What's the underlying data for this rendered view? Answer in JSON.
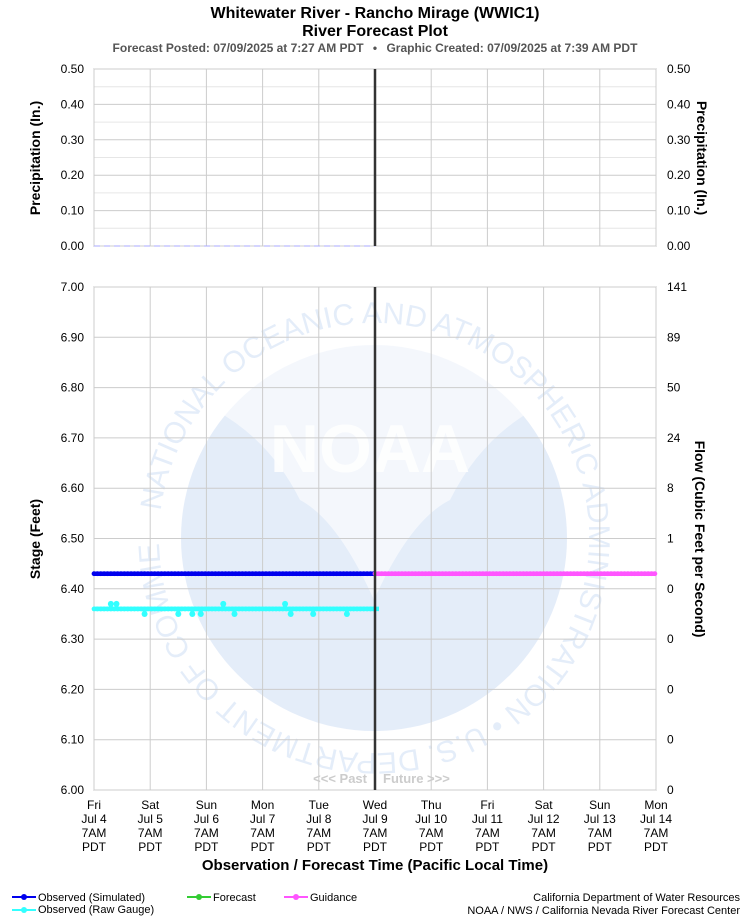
{
  "header": {
    "title": "Whitewater River - Rancho Mirage (WWIC1)",
    "subtitle": "River Forecast Plot",
    "posted": "Forecast Posted: 07/09/2025 at 7:27 AM PDT",
    "separator": "•",
    "created": "Graphic Created: 07/09/2025 at 7:39 AM PDT"
  },
  "chart_data": [
    {
      "type": "line",
      "panel": "precipitation",
      "ylabel": "Precipitation (In.)",
      "ylabel_right": "Precipitation (In.)",
      "ylim": [
        0,
        0.5
      ],
      "yticks": [
        "0.50",
        "0.40",
        "0.30",
        "0.20",
        "0.10",
        "0.00"
      ],
      "series": [
        {
          "name": "",
          "color": "#aaaaff",
          "style": "dashed",
          "x": [
            0,
            5
          ],
          "y": [
            0.0,
            0.0
          ]
        }
      ]
    },
    {
      "type": "line",
      "panel": "stage",
      "ylabel": "Stage (Feet)",
      "ylabel_right": "Flow (Cubic Feet per Second)",
      "ylim": [
        6.0,
        7.0
      ],
      "yticks": [
        "7.00",
        "6.90",
        "6.80",
        "6.70",
        "6.60",
        "6.50",
        "6.40",
        "6.30",
        "6.20",
        "6.10",
        "6.00"
      ],
      "yticks_right": [
        "141",
        "89",
        "50",
        "24",
        "8",
        "1",
        "0",
        "0",
        "0",
        "0",
        "0"
      ],
      "xlabel": "Observation / Forecast Time (Pacific Local Time)",
      "x_days_from_jul4": [
        0,
        1,
        2,
        3,
        4,
        5,
        6,
        7,
        8,
        9,
        10
      ],
      "x_ticks": [
        [
          "Fri",
          "Jul 4",
          "7AM",
          "PDT"
        ],
        [
          "Sat",
          "Jul 5",
          "7AM",
          "PDT"
        ],
        [
          "Sun",
          "Jul 6",
          "7AM",
          "PDT"
        ],
        [
          "Mon",
          "Jul 7",
          "7AM",
          "PDT"
        ],
        [
          "Tue",
          "Jul 8",
          "7AM",
          "PDT"
        ],
        [
          "Wed",
          "Jul 9",
          "7AM",
          "PDT"
        ],
        [
          "Thu",
          "Jul 10",
          "7AM",
          "PDT"
        ],
        [
          "Fri",
          "Jul 11",
          "7AM",
          "PDT"
        ],
        [
          "Sat",
          "Jul 12",
          "7AM",
          "PDT"
        ],
        [
          "Sun",
          "Jul 13",
          "7AM",
          "PDT"
        ],
        [
          "Mon",
          "Jul 14",
          "7AM",
          "PDT"
        ]
      ],
      "now_day": 5,
      "past_label": "<<< Past",
      "future_label": "Future >>>",
      "series": [
        {
          "name": "Observed (Simulated)",
          "color": "#0000ee",
          "x_start": 0,
          "x_end": 5.0,
          "value": 6.43
        },
        {
          "name": "Guidance",
          "color": "#ff55ff",
          "x_start": 5.0,
          "x_end": 10.0,
          "value": 6.43
        },
        {
          "name": "Observed (Raw Gauge)",
          "color": "#33ffff",
          "x_start": 0,
          "x_end": 5.0,
          "value": 6.36,
          "points": [
            [
              0.3,
              6.37
            ],
            [
              0.4,
              6.37
            ],
            [
              0.9,
              6.35
            ],
            [
              1.5,
              6.35
            ],
            [
              1.75,
              6.35
            ],
            [
              1.9,
              6.35
            ],
            [
              2.3,
              6.37
            ],
            [
              2.5,
              6.35
            ],
            [
              3.4,
              6.37
            ],
            [
              3.5,
              6.35
            ],
            [
              3.9,
              6.35
            ],
            [
              4.5,
              6.35
            ]
          ]
        }
      ]
    }
  ],
  "legend": {
    "observed_simulated": "Observed (Simulated)",
    "observed_raw": "Observed (Raw Gauge)",
    "forecast": "Forecast",
    "guidance": "Guidance",
    "color_simulated": "#0000ee",
    "color_raw": "#33ffff",
    "color_forecast": "#33cc33",
    "color_guidance": "#ff55ff"
  },
  "credits": {
    "line1": "California Department of Water Resources",
    "line2": "NOAA / NWS / California Nevada River Forecast Center"
  },
  "watermark": {
    "logo_text": "NOAA",
    "ring_text": "NATIONAL OCEANIC AND ATMOSPHERIC ADMINISTRATION • U.S. DEPARTMENT OF COMMERCE"
  }
}
